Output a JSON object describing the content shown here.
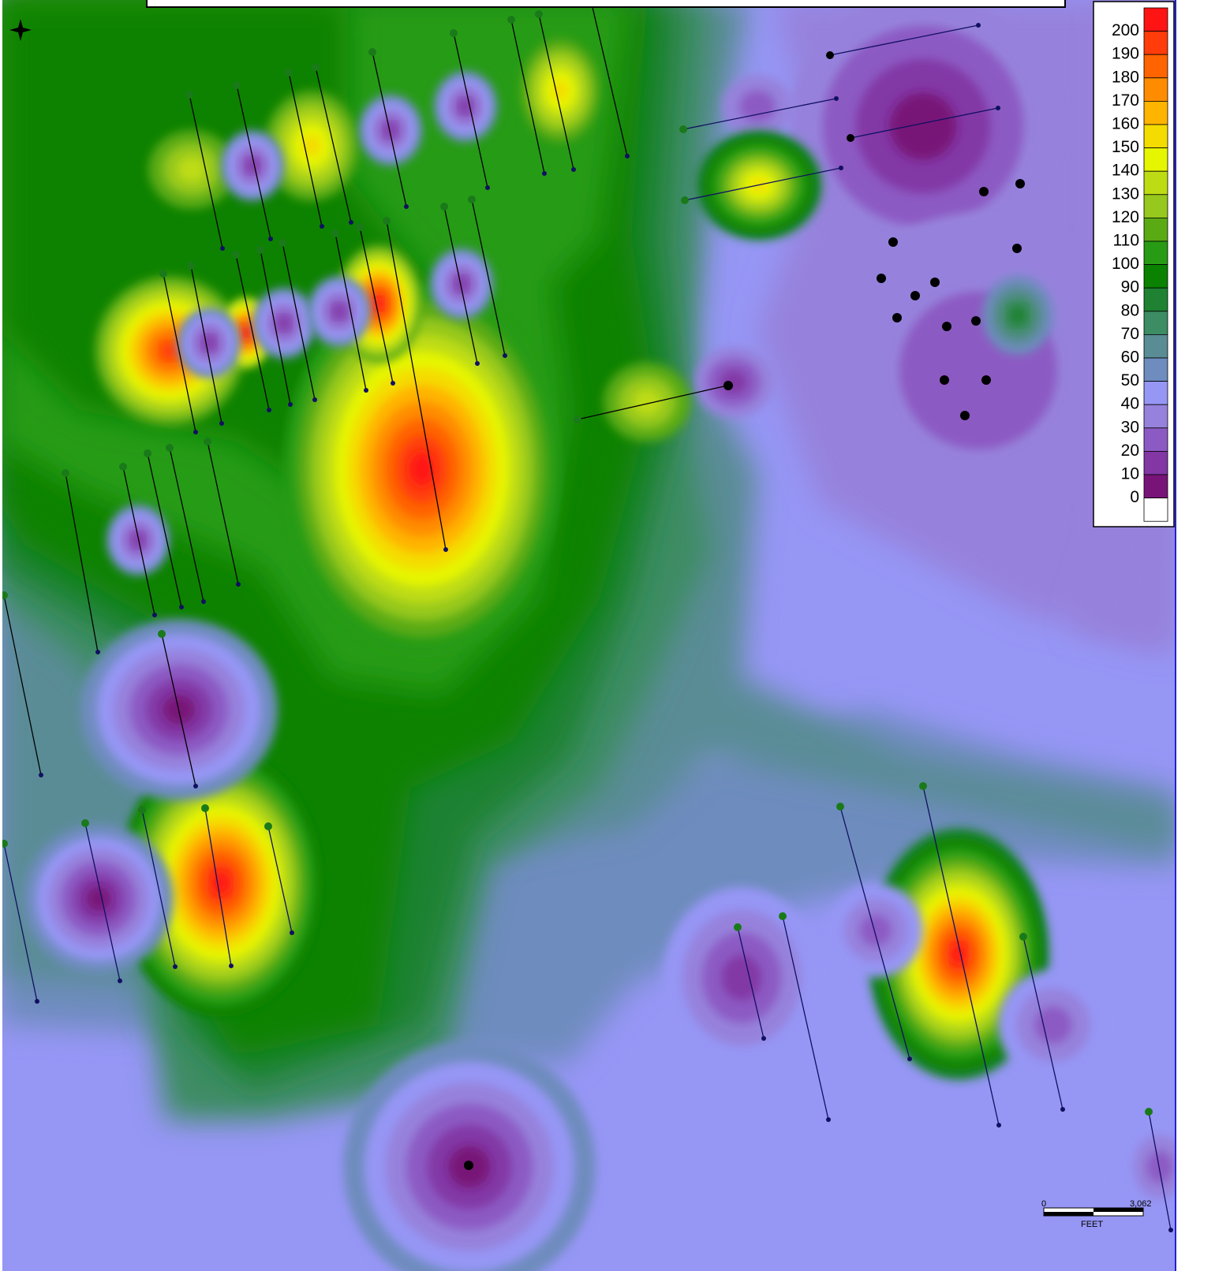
{
  "legend": {
    "items": [
      {
        "label": 200,
        "color": "#ff1414"
      },
      {
        "label": 190,
        "color": "#ff3c0a"
      },
      {
        "label": 180,
        "color": "#ff6400"
      },
      {
        "label": 170,
        "color": "#ff8c00"
      },
      {
        "label": 160,
        "color": "#ffb400"
      },
      {
        "label": 150,
        "color": "#f5dc00"
      },
      {
        "label": 140,
        "color": "#e6f500"
      },
      {
        "label": 130,
        "color": "#bedc14"
      },
      {
        "label": 120,
        "color": "#96c81e"
      },
      {
        "label": 110,
        "color": "#5aaa14"
      },
      {
        "label": 100,
        "color": "#289b14"
      },
      {
        "label": 90,
        "color": "#0a8200"
      },
      {
        "label": 80,
        "color": "#1e8232"
      },
      {
        "label": 70,
        "color": "#3c8c64"
      },
      {
        "label": 60,
        "color": "#5a8c96"
      },
      {
        "label": 50,
        "color": "#6e8cbe"
      },
      {
        "label": 40,
        "color": "#9696f5"
      },
      {
        "label": 30,
        "color": "#9682dc"
      },
      {
        "label": 20,
        "color": "#8c5ac3"
      },
      {
        "label": 10,
        "color": "#8237a5"
      },
      {
        "label": 0,
        "color": "#781478"
      }
    ]
  },
  "scale_bar": {
    "start": "0",
    "end": "3,062",
    "unit": "FEET"
  }
}
